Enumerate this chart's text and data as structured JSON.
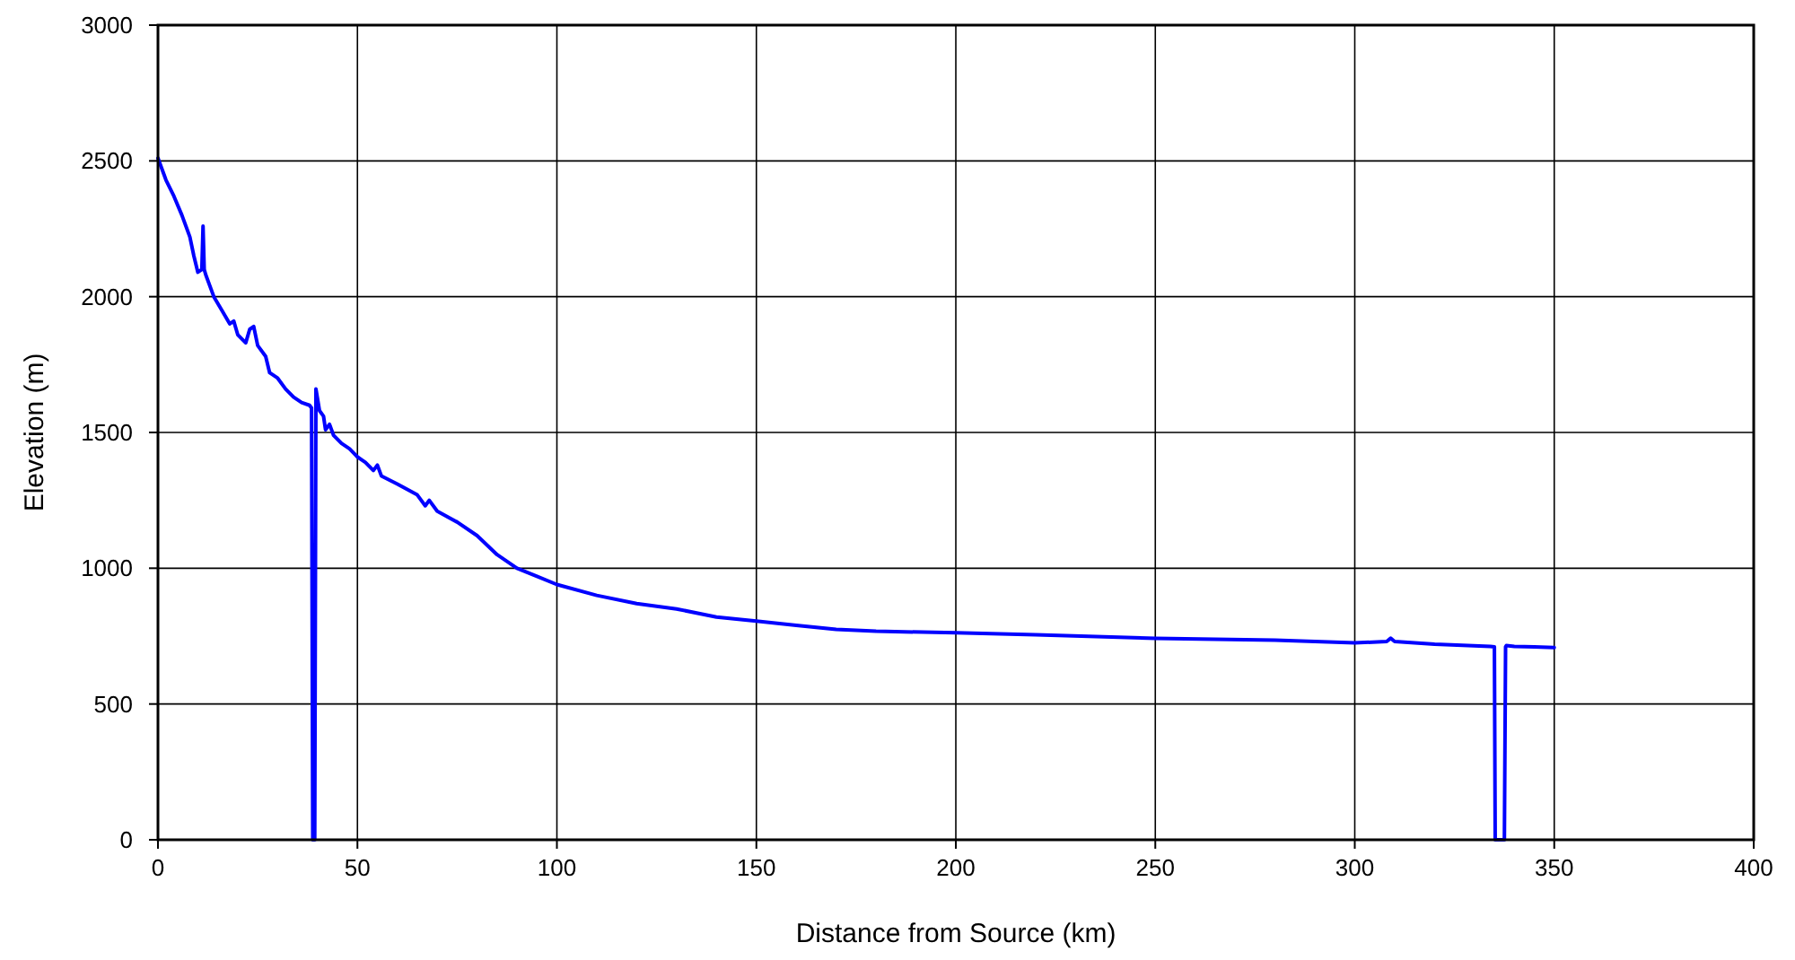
{
  "chart_data": {
    "type": "line",
    "xlabel": "Distance from Source (km)",
    "ylabel": "Elevation (m)",
    "xlim": [
      0,
      400
    ],
    "ylim": [
      0,
      3000
    ],
    "xticks": [
      0,
      50,
      100,
      150,
      200,
      250,
      300,
      350,
      400
    ],
    "yticks": [
      0,
      500,
      1000,
      1500,
      2000,
      2500,
      3000
    ],
    "grid": true,
    "marker": "none",
    "line_style": "solid",
    "series": [
      {
        "color": "#0000ff",
        "x": [
          0,
          2,
          4,
          6,
          8,
          9,
          10,
          11,
          11.3,
          11.6,
          12,
          14,
          16,
          18,
          19,
          20,
          22,
          23,
          24,
          25,
          27,
          28,
          30,
          32,
          34,
          36,
          38,
          38.5,
          38.8,
          39.3,
          39.6,
          40.5,
          41.5,
          42,
          43,
          44,
          46,
          48,
          50,
          52,
          54,
          55,
          56,
          60,
          65,
          67,
          68,
          70,
          75,
          80,
          85,
          90,
          95,
          100,
          110,
          120,
          130,
          140,
          150,
          160,
          170,
          180,
          200,
          220,
          250,
          280,
          300,
          308,
          309,
          310,
          320,
          334,
          335,
          335.2,
          337.5,
          337.8,
          338,
          340,
          345,
          350
        ],
        "values": [
          2510,
          2430,
          2370,
          2300,
          2220,
          2150,
          2090,
          2100,
          2260,
          2100,
          2080,
          2000,
          1950,
          1900,
          1910,
          1860,
          1830,
          1880,
          1890,
          1820,
          1780,
          1720,
          1700,
          1660,
          1630,
          1610,
          1600,
          1590,
          0,
          0,
          1660,
          1580,
          1560,
          1510,
          1530,
          1490,
          1460,
          1440,
          1410,
          1390,
          1360,
          1380,
          1340,
          1310,
          1270,
          1230,
          1250,
          1210,
          1170,
          1120,
          1050,
          1000,
          970,
          940,
          900,
          870,
          850,
          820,
          805,
          790,
          775,
          768,
          762,
          755,
          742,
          735,
          725,
          730,
          742,
          730,
          720,
          712,
          710,
          0,
          0,
          710,
          715,
          712,
          710,
          708
        ]
      }
    ]
  }
}
